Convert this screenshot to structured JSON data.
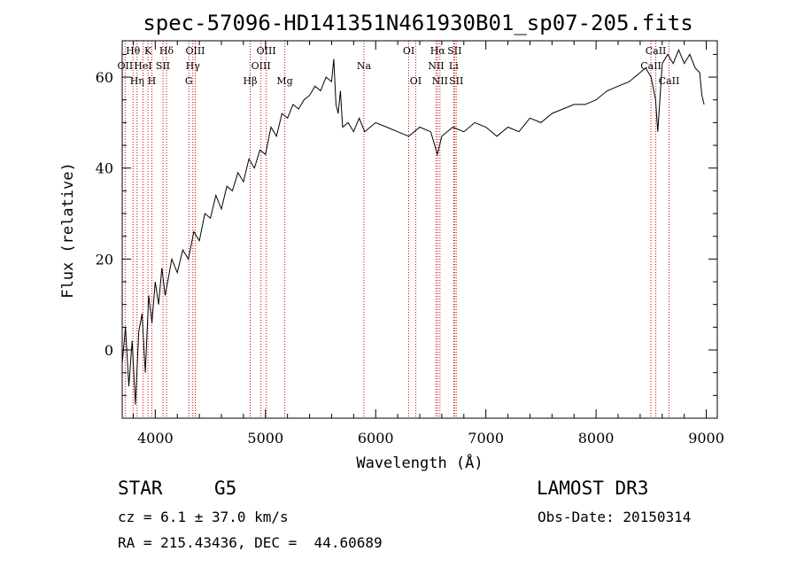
{
  "chart_data": {
    "type": "line",
    "title": "spec-57096-HD141351N461930B01_sp07-205.fits",
    "xlabel": "Wavelength (Å)",
    "ylabel": "Flux (relative)",
    "xlim": [
      3700,
      9100
    ],
    "ylim": [
      -15,
      68
    ],
    "xticks": [
      4000,
      5000,
      6000,
      7000,
      8000,
      9000
    ],
    "yticks": [
      0,
      20,
      40,
      60
    ],
    "grid": false,
    "series": [
      {
        "name": "flux",
        "x": [
          3700,
          3730,
          3760,
          3790,
          3820,
          3850,
          3880,
          3910,
          3940,
          3970,
          4000,
          4030,
          4060,
          4090,
          4120,
          4150,
          4200,
          4250,
          4300,
          4350,
          4400,
          4450,
          4500,
          4550,
          4600,
          4650,
          4700,
          4750,
          4800,
          4850,
          4900,
          4950,
          5000,
          5050,
          5100,
          5150,
          5200,
          5250,
          5300,
          5350,
          5400,
          5450,
          5500,
          5550,
          5600,
          5620,
          5640,
          5660,
          5680,
          5700,
          5750,
          5800,
          5850,
          5900,
          5950,
          6000,
          6100,
          6200,
          6300,
          6400,
          6500,
          6560,
          6600,
          6700,
          6800,
          6900,
          7000,
          7100,
          7200,
          7300,
          7400,
          7500,
          7600,
          7700,
          7800,
          7900,
          8000,
          8100,
          8200,
          8300,
          8400,
          8450,
          8500,
          8540,
          8560,
          8600,
          8650,
          8700,
          8750,
          8800,
          8850,
          8900,
          8940,
          8960,
          8980
        ],
        "y": [
          -3,
          5,
          -8,
          2,
          -12,
          4,
          8,
          -5,
          12,
          6,
          15,
          10,
          18,
          12,
          16,
          20,
          17,
          22,
          20,
          26,
          24,
          30,
          29,
          34,
          31,
          36,
          35,
          39,
          37,
          42,
          40,
          44,
          43,
          49,
          47,
          52,
          51,
          54,
          53,
          55,
          56,
          58,
          57,
          60,
          59,
          64,
          54,
          52,
          57,
          49,
          50,
          48,
          51,
          48,
          49,
          50,
          49,
          48,
          47,
          49,
          48,
          43,
          47,
          49,
          48,
          50,
          49,
          47,
          49,
          48,
          51,
          50,
          52,
          53,
          54,
          54,
          55,
          57,
          58,
          59,
          61,
          62,
          60,
          55,
          48,
          63,
          65,
          63,
          66,
          63,
          65,
          62,
          61,
          56,
          54
        ]
      }
    ],
    "spectral_lines": [
      {
        "label": "Hθ",
        "wavelength": 3798,
        "row": 0
      },
      {
        "label": "OII",
        "wavelength": 3727,
        "row": 1
      },
      {
        "label": "Hη",
        "wavelength": 3835,
        "row": 2
      },
      {
        "label": "HeI",
        "wavelength": 3889,
        "row": 1
      },
      {
        "label": "K",
        "wavelength": 3934,
        "row": 0
      },
      {
        "label": "H",
        "wavelength": 3969,
        "row": 2
      },
      {
        "label": "SII",
        "wavelength": 4070,
        "row": 1
      },
      {
        "label": "Hδ",
        "wavelength": 4102,
        "row": 0
      },
      {
        "label": "OIII",
        "wavelength": 4363,
        "row": 0
      },
      {
        "label": "Hγ",
        "wavelength": 4341,
        "row": 1
      },
      {
        "label": "G",
        "wavelength": 4305,
        "row": 2
      },
      {
        "label": "Hβ",
        "wavelength": 4861,
        "row": 2
      },
      {
        "label": "OIII",
        "wavelength": 5007,
        "row": 0
      },
      {
        "label": "OIII",
        "wavelength": 4959,
        "row": 1
      },
      {
        "label": "Mg",
        "wavelength": 5175,
        "row": 2
      },
      {
        "label": "Na",
        "wavelength": 5893,
        "row": 1
      },
      {
        "label": "OI",
        "wavelength": 6300,
        "row": 0
      },
      {
        "label": "OI",
        "wavelength": 6363,
        "row": 2
      },
      {
        "label": "Hα",
        "wavelength": 6563,
        "row": 0
      },
      {
        "label": "NII",
        "wavelength": 6548,
        "row": 1
      },
      {
        "label": "NII",
        "wavelength": 6583,
        "row": 2
      },
      {
        "label": "SII",
        "wavelength": 6716,
        "row": 0
      },
      {
        "label": "Li",
        "wavelength": 6708,
        "row": 1
      },
      {
        "label": "SII",
        "wavelength": 6731,
        "row": 2
      },
      {
        "label": "CaII",
        "wavelength": 8542,
        "row": 0
      },
      {
        "label": "CaII",
        "wavelength": 8498,
        "row": 1
      },
      {
        "label": "CaII",
        "wavelength": 8662,
        "row": 2
      }
    ]
  },
  "info": {
    "object_type": "STAR",
    "subclass": "G5",
    "survey": "LAMOST DR3",
    "redshift": "cz = 6.1 ± 37.0 km/s",
    "obs_date": "Obs-Date: 20150314",
    "coords": "RA = 215.43436, DEC =  44.60689"
  },
  "colors": {
    "line": "#000000",
    "marker": "#cc0000",
    "background": "#ffffff"
  }
}
